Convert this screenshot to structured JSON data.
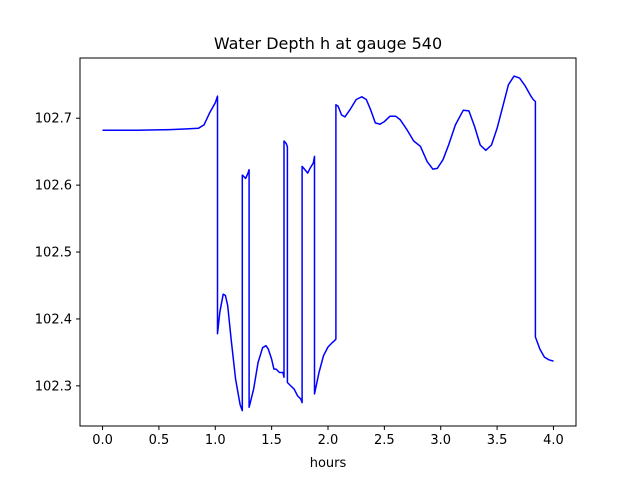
{
  "chart_data": {
    "type": "line",
    "title": "Water Depth h at gauge 540",
    "xlabel": "hours",
    "ylabel": "",
    "xlim": [
      -0.2,
      4.2
    ],
    "ylim": [
      102.24,
      102.79
    ],
    "x_ticks": [
      0.0,
      0.5,
      1.0,
      1.5,
      2.0,
      2.5,
      3.0,
      3.5,
      4.0
    ],
    "x_tick_labels": [
      "0.0",
      "0.5",
      "1.0",
      "1.5",
      "2.0",
      "2.5",
      "3.0",
      "3.5",
      "4.0"
    ],
    "y_ticks": [
      102.3,
      102.4,
      102.5,
      102.6,
      102.7
    ],
    "y_tick_labels": [
      "102.3",
      "102.4",
      "102.5",
      "102.6",
      "102.7"
    ],
    "grid": false,
    "legend": "none",
    "series": [
      {
        "color": "#0000ff",
        "x": [
          0.0,
          0.3,
          0.6,
          0.75,
          0.85,
          0.9,
          0.95,
          1.0,
          1.02,
          1.02,
          1.04,
          1.07,
          1.09,
          1.11,
          1.14,
          1.18,
          1.22,
          1.24,
          1.24,
          1.27,
          1.29,
          1.3,
          1.3,
          1.34,
          1.38,
          1.42,
          1.45,
          1.47,
          1.5,
          1.52,
          1.54,
          1.57,
          1.6,
          1.61,
          1.61,
          1.63,
          1.64,
          1.64,
          1.67,
          1.7,
          1.73,
          1.76,
          1.77,
          1.77,
          1.8,
          1.82,
          1.84,
          1.87,
          1.88,
          1.88,
          1.92,
          1.96,
          2.0,
          2.04,
          2.06,
          2.07,
          2.07,
          2.09,
          2.12,
          2.15,
          2.2,
          2.25,
          2.3,
          2.34,
          2.38,
          2.42,
          2.46,
          2.5,
          2.55,
          2.6,
          2.64,
          2.7,
          2.76,
          2.82,
          2.88,
          2.93,
          2.97,
          3.02,
          3.07,
          3.13,
          3.2,
          3.25,
          3.3,
          3.35,
          3.4,
          3.45,
          3.5,
          3.55,
          3.6,
          3.65,
          3.7,
          3.75,
          3.8,
          3.82,
          3.84,
          3.84,
          3.88,
          3.92,
          3.96,
          4.0
        ],
        "y": [
          102.682,
          102.682,
          102.683,
          102.684,
          102.685,
          102.69,
          102.708,
          102.723,
          102.733,
          102.378,
          102.41,
          102.437,
          102.435,
          102.42,
          102.37,
          102.31,
          102.272,
          102.263,
          102.615,
          102.61,
          102.618,
          102.623,
          102.268,
          102.295,
          102.335,
          102.357,
          102.36,
          102.355,
          102.34,
          102.325,
          102.325,
          102.32,
          102.32,
          102.313,
          102.666,
          102.662,
          102.657,
          102.305,
          102.3,
          102.295,
          102.285,
          102.28,
          102.275,
          102.628,
          102.622,
          102.618,
          102.625,
          102.633,
          102.643,
          102.288,
          102.32,
          102.345,
          102.358,
          102.365,
          102.368,
          102.37,
          102.72,
          102.718,
          102.705,
          102.702,
          102.714,
          102.728,
          102.732,
          102.728,
          102.712,
          102.693,
          102.691,
          102.695,
          102.703,
          102.703,
          102.698,
          102.683,
          102.666,
          102.658,
          102.635,
          102.624,
          102.625,
          102.638,
          102.66,
          102.69,
          102.712,
          102.711,
          102.688,
          102.66,
          102.652,
          102.66,
          102.685,
          102.717,
          102.75,
          102.763,
          102.76,
          102.748,
          102.733,
          102.728,
          102.725,
          102.373,
          102.355,
          102.343,
          102.339,
          102.337
        ]
      }
    ]
  }
}
